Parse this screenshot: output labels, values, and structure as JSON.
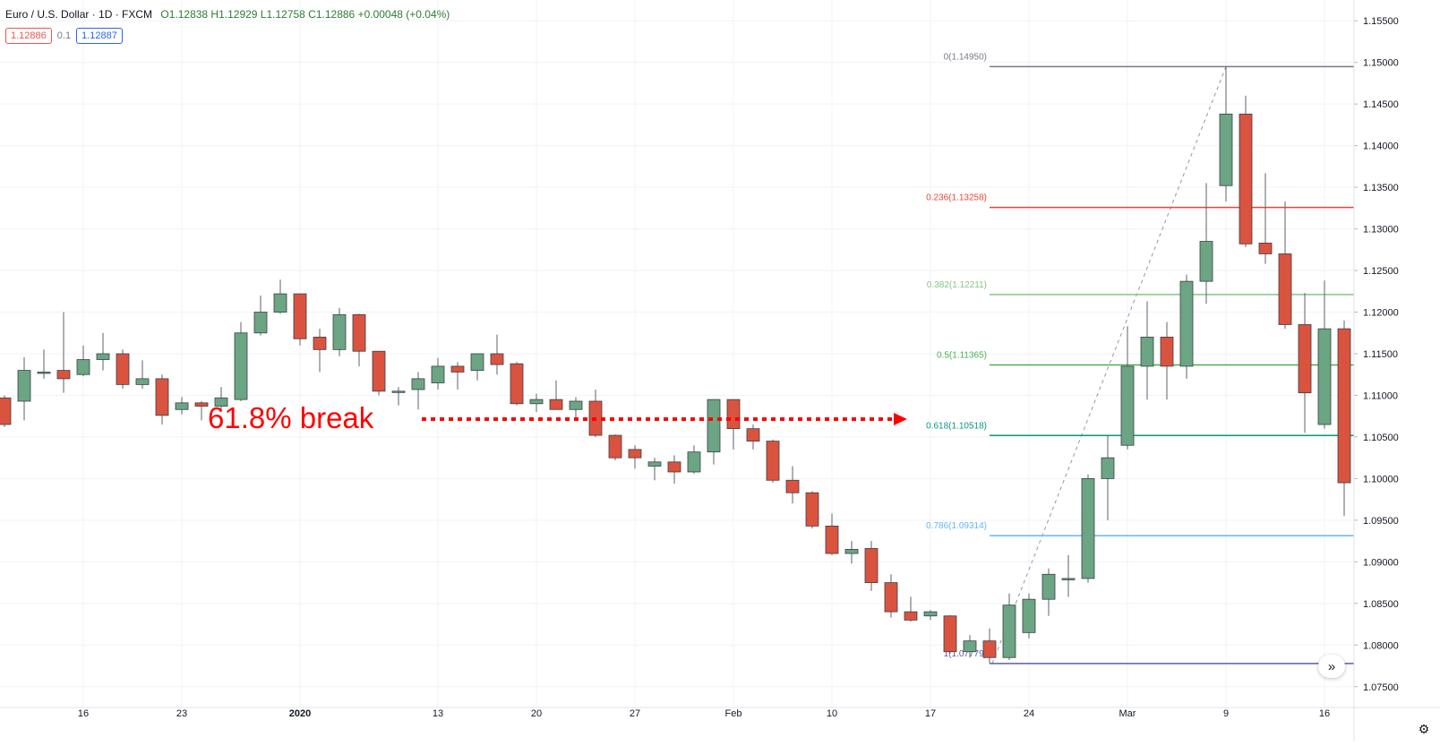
{
  "header": {
    "symbol": "Euro / U.S. Dollar · 1D · FXCM",
    "ohlc": "O1.12838 H1.12929 L1.12758 C1.12886 +0.00048 (+0.04%)"
  },
  "badges": {
    "sell": "1.12886",
    "spread": "0.1",
    "buy": "1.12887"
  },
  "annotation": {
    "text": "61.8% break",
    "color": "#ff0000"
  },
  "colors": {
    "up": "#6ba583",
    "down": "#d9533f",
    "wick": "#5d606b",
    "grid": "#f0f3fa"
  },
  "icons": {
    "scroll": "double-chevron-right-icon",
    "settings": "gear-icon"
  },
  "chart_data": {
    "type": "candlestick",
    "ylim": [
      1.0725,
      1.1575
    ],
    "y_ticks": [
      1.075,
      1.08,
      1.085,
      1.09,
      1.095,
      1.1,
      1.105,
      1.11,
      1.115,
      1.12,
      1.125,
      1.13,
      1.135,
      1.14,
      1.145,
      1.15,
      1.155
    ],
    "y_tick_labels": [
      "1.07500",
      "1.08000",
      "1.08500",
      "1.09000",
      "1.09500",
      "1.10000",
      "1.10500",
      "1.11000",
      "1.11500",
      "1.12000",
      "1.12500",
      "1.13000",
      "1.13500",
      "1.14000",
      "1.14500",
      "1.15000",
      "1.15500"
    ],
    "x_ticks": [
      {
        "label": "16",
        "bar": 4
      },
      {
        "label": "23",
        "bar": 9
      },
      {
        "label": "2020",
        "bar": 15
      },
      {
        "label": "13",
        "bar": 22
      },
      {
        "label": "20",
        "bar": 27
      },
      {
        "label": "27",
        "bar": 32
      },
      {
        "label": "Feb",
        "bar": 37
      },
      {
        "label": "10",
        "bar": 42
      },
      {
        "label": "17",
        "bar": 47
      },
      {
        "label": "24",
        "bar": 52
      },
      {
        "label": "Mar",
        "bar": 57
      },
      {
        "label": "9",
        "bar": 62
      },
      {
        "label": "16",
        "bar": 67
      }
    ],
    "candles": [
      [
        1.1097,
        1.11,
        1.1062,
        1.1065
      ],
      [
        1.1093,
        1.1146,
        1.107,
        1.113
      ],
      [
        1.1128,
        1.1155,
        1.112,
        1.1128
      ],
      [
        1.113,
        1.12,
        1.1103,
        1.112
      ],
      [
        1.1125,
        1.116,
        1.1123,
        1.1143
      ],
      [
        1.1143,
        1.1175,
        1.113,
        1.115
      ],
      [
        1.115,
        1.1155,
        1.1108,
        1.1113
      ],
      [
        1.1113,
        1.1142,
        1.1108,
        1.112
      ],
      [
        1.112,
        1.1125,
        1.1065,
        1.1076
      ],
      [
        1.1083,
        1.1098,
        1.1077,
        1.1091
      ],
      [
        1.1091,
        1.1093,
        1.107,
        1.1087
      ],
      [
        1.1087,
        1.111,
        1.1082,
        1.1097
      ],
      [
        1.1095,
        1.1188,
        1.1093,
        1.1175
      ],
      [
        1.1175,
        1.122,
        1.1172,
        1.12
      ],
      [
        1.12,
        1.1239,
        1.1198,
        1.1222
      ],
      [
        1.1222,
        1.1222,
        1.116,
        1.1168
      ],
      [
        1.117,
        1.118,
        1.1128,
        1.1155
      ],
      [
        1.1155,
        1.1205,
        1.1147,
        1.1197
      ],
      [
        1.1197,
        1.1198,
        1.1135,
        1.1153
      ],
      [
        1.1153,
        1.1153,
        1.11,
        1.1105
      ],
      [
        1.1105,
        1.111,
        1.1088,
        1.1105
      ],
      [
        1.1107,
        1.1128,
        1.1083,
        1.112
      ],
      [
        1.1115,
        1.1145,
        1.1107,
        1.1135
      ],
      [
        1.1135,
        1.114,
        1.1107,
        1.1128
      ],
      [
        1.113,
        1.1148,
        1.1118,
        1.115
      ],
      [
        1.115,
        1.1173,
        1.1125,
        1.1137
      ],
      [
        1.1138,
        1.114,
        1.1088,
        1.109
      ],
      [
        1.109,
        1.1102,
        1.108,
        1.1095
      ],
      [
        1.1095,
        1.1118,
        1.1083,
        1.1083
      ],
      [
        1.1083,
        1.1098,
        1.1073,
        1.1093
      ],
      [
        1.1093,
        1.1107,
        1.105,
        1.1052
      ],
      [
        1.1052,
        1.1053,
        1.1022,
        1.1025
      ],
      [
        1.1035,
        1.104,
        1.1012,
        1.1025
      ],
      [
        1.1015,
        1.1025,
        1.0998,
        1.102
      ],
      [
        1.102,
        1.1028,
        1.0994,
        1.1008
      ],
      [
        1.1008,
        1.104,
        1.1006,
        1.1032
      ],
      [
        1.1032,
        1.1095,
        1.1017,
        1.1095
      ],
      [
        1.1095,
        1.1095,
        1.1035,
        1.106
      ],
      [
        1.106,
        1.1065,
        1.1035,
        1.1045
      ],
      [
        1.1045,
        1.1047,
        1.0995,
        1.0998
      ],
      [
        1.0998,
        1.1015,
        1.097,
        1.0983
      ],
      [
        1.0983,
        1.0985,
        1.094,
        1.0943
      ],
      [
        1.0943,
        1.0958,
        1.0908,
        1.091
      ],
      [
        1.091,
        1.0925,
        1.0898,
        1.0915
      ],
      [
        1.0916,
        1.0925,
        1.0865,
        1.0875
      ],
      [
        1.0875,
        1.0885,
        1.0833,
        1.084
      ],
      [
        1.084,
        1.0858,
        1.0828,
        1.083
      ],
      [
        1.0835,
        1.0842,
        1.083,
        1.084
      ],
      [
        1.0835,
        1.0836,
        1.079,
        1.0792
      ],
      [
        1.0792,
        1.0812,
        1.0785,
        1.0805
      ],
      [
        1.0805,
        1.082,
        1.0778,
        1.0785
      ],
      [
        1.0785,
        1.0862,
        1.0782,
        1.0848
      ],
      [
        1.0815,
        1.0862,
        1.0808,
        1.0855
      ],
      [
        1.0855,
        1.0892,
        1.0835,
        1.0885
      ],
      [
        1.088,
        1.0908,
        1.0858,
        1.088
      ],
      [
        1.088,
        1.1005,
        1.0875,
        1.1
      ],
      [
        1.1,
        1.1052,
        1.095,
        1.1025
      ],
      [
        1.104,
        1.1183,
        1.1035,
        1.1135
      ],
      [
        1.1135,
        1.1213,
        1.1095,
        1.117
      ],
      [
        1.117,
        1.1188,
        1.1095,
        1.1135
      ],
      [
        1.1135,
        1.1245,
        1.112,
        1.1237
      ],
      [
        1.1237,
        1.1355,
        1.121,
        1.1285
      ],
      [
        1.1352,
        1.1495,
        1.1333,
        1.1438
      ],
      [
        1.1438,
        1.146,
        1.1278,
        1.1282
      ],
      [
        1.1283,
        1.1367,
        1.1258,
        1.127
      ],
      [
        1.127,
        1.1333,
        1.118,
        1.1185
      ],
      [
        1.1185,
        1.1223,
        1.1055,
        1.1103
      ],
      [
        1.1065,
        1.1238,
        1.106,
        1.118
      ],
      [
        1.118,
        1.119,
        1.0955,
        1.0995
      ]
    ],
    "fibonacci": {
      "levels": [
        {
          "label": "0(1.14950)",
          "price": 1.1495,
          "color": "#787b86"
        },
        {
          "label": "0.236(1.13258)",
          "price": 1.13258,
          "color": "#f44336"
        },
        {
          "label": "0.382(1.12211)",
          "price": 1.12211,
          "color": "#81c784"
        },
        {
          "label": "0.5(1.11365)",
          "price": 1.11365,
          "color": "#4caf50"
        },
        {
          "label": "0.618(1.10518)",
          "price": 1.10518,
          "color": "#089981"
        },
        {
          "label": "0.786(1.09314)",
          "price": 1.09314,
          "color": "#64b5f6"
        },
        {
          "label": "1(1.07779)",
          "price": 1.07779,
          "color": "#5b5ea6"
        }
      ],
      "start_bar": 50,
      "end_bar": 62
    }
  }
}
